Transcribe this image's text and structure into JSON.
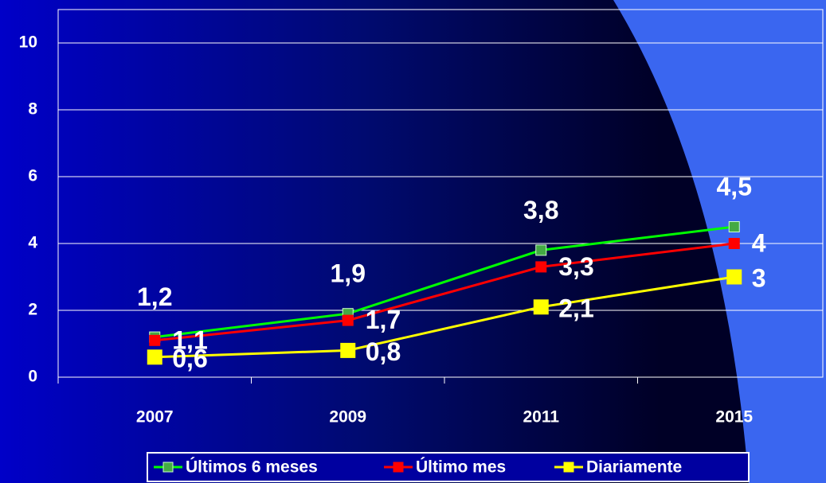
{
  "chart_data": {
    "type": "line",
    "categories": [
      "2007",
      "2009",
      "2011",
      "2015"
    ],
    "series": [
      {
        "name": "Últimos 6 meses",
        "color": "#00ff00",
        "values": [
          1.2,
          1.9,
          3.8,
          4.5
        ],
        "value_labels": [
          "1,2",
          "1,9",
          "3,8",
          "4,5"
        ]
      },
      {
        "name": "Último mes",
        "color": "#ff0000",
        "values": [
          1.1,
          1.7,
          3.3,
          4
        ],
        "value_labels": [
          "1,1",
          "1,7",
          "3,3",
          "4"
        ]
      },
      {
        "name": "Diariamente",
        "color": "#ffff00",
        "values": [
          0.6,
          0.8,
          2.1,
          3
        ],
        "value_labels": [
          "0,6",
          "0,8",
          "2,1",
          "3"
        ]
      }
    ],
    "ylim": [
      0,
      11
    ],
    "yticks": [
      0,
      2,
      4,
      6,
      8,
      10
    ],
    "grid": true,
    "legend": "bottom"
  }
}
